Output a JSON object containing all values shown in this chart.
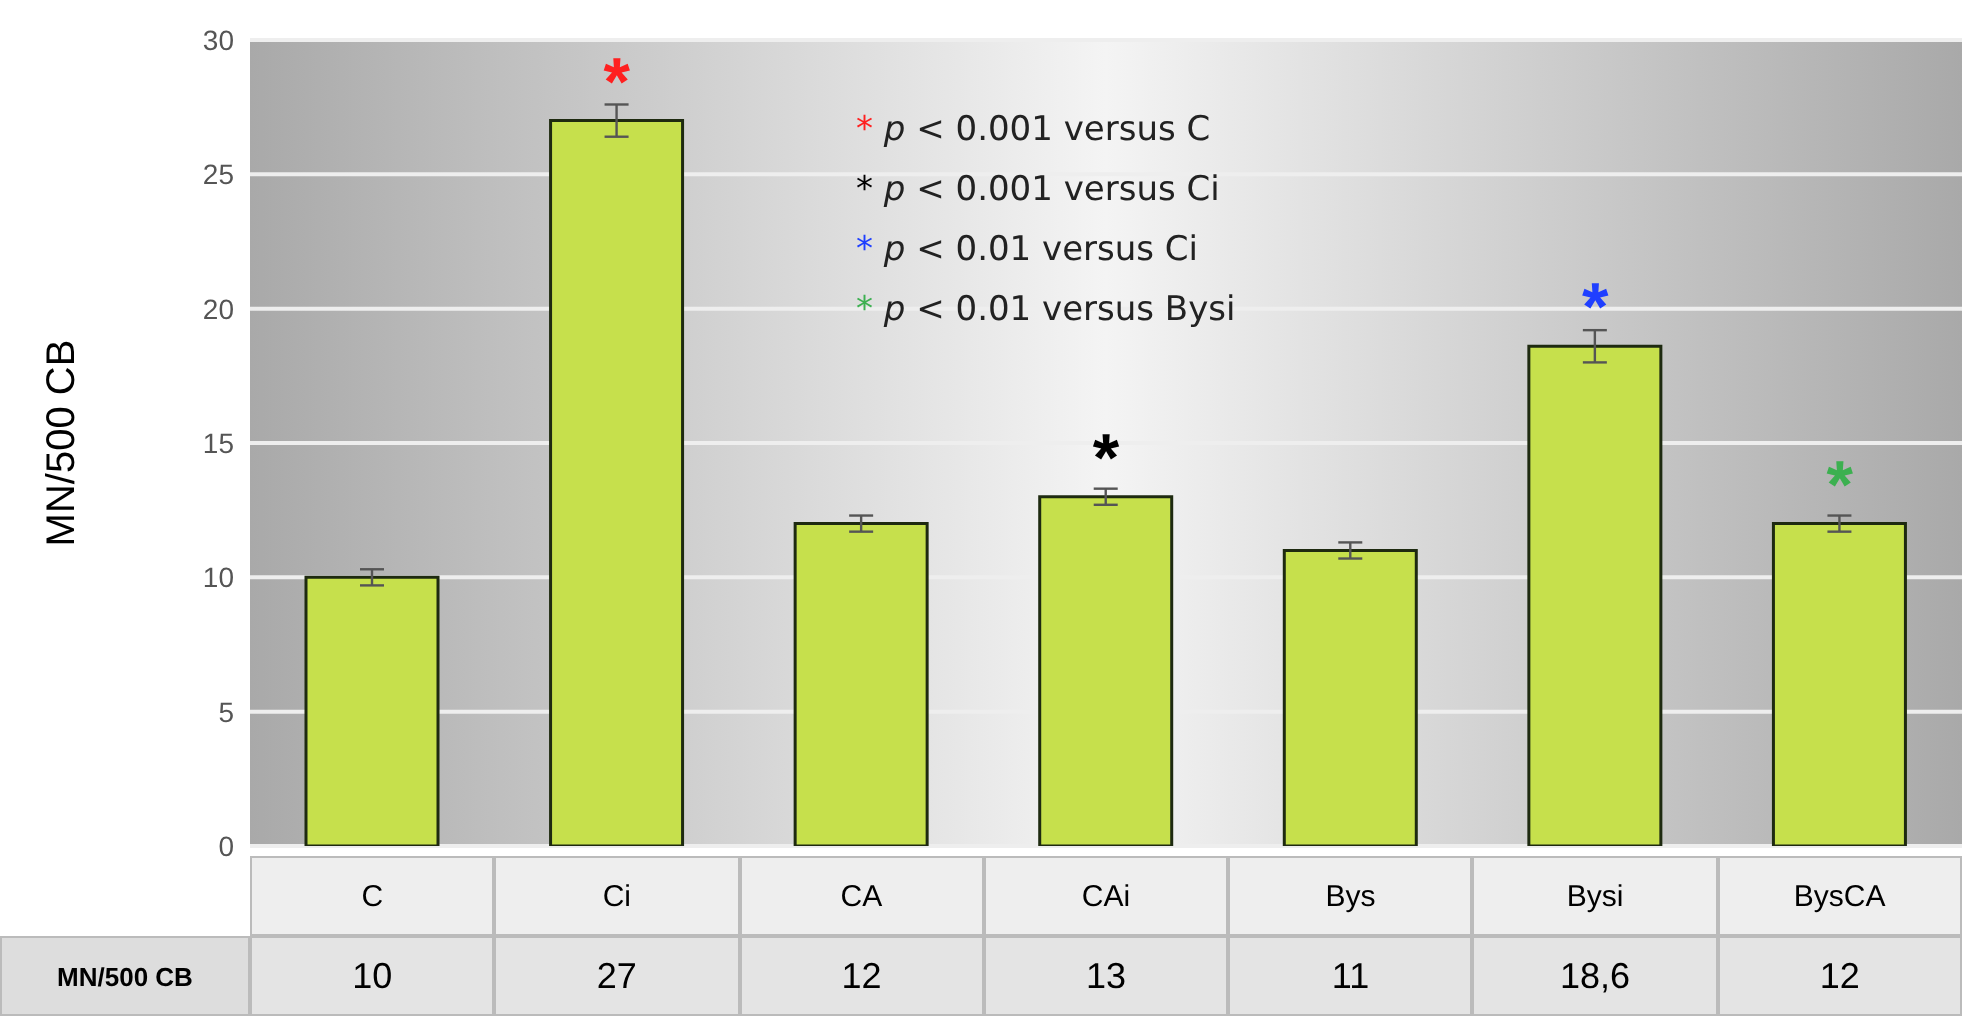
{
  "chart_data": {
    "type": "bar",
    "ylabel": "MN/500 CB",
    "categories": [
      "C",
      "Ci",
      "CA",
      "CAi",
      "Bys",
      "Bysi",
      "BysCA"
    ],
    "series": [
      {
        "name": "MN/500 CB",
        "color": "#c6e04c",
        "values": [
          10,
          27,
          12,
          13,
          11,
          18.6,
          12
        ],
        "errors": [
          0.3,
          0.6,
          0.3,
          0.3,
          0.3,
          0.6,
          0.3
        ],
        "value_labels": [
          "10",
          "27",
          "12",
          "13",
          "11",
          "18,6",
          "12"
        ]
      }
    ],
    "ylim": [
      0,
      30
    ],
    "yticks": [
      0,
      5,
      10,
      15,
      20,
      25,
      30
    ],
    "grid": "y",
    "annotations": [
      "* p < 0.001 versus C",
      "* p < 0.001 versus Ci",
      "* p < 0.01 versus Ci",
      "* p < 0.01 versus Bysi",
      {
        "text": "*",
        "x": "Ci",
        "y": 27
      },
      {
        "text": "*",
        "x": "CAi",
        "y": 13
      },
      {
        "text": "*",
        "x": "Bysi",
        "y": 18.6
      },
      {
        "text": "*",
        "x": "BysCA",
        "y": 12
      }
    ]
  }
}
